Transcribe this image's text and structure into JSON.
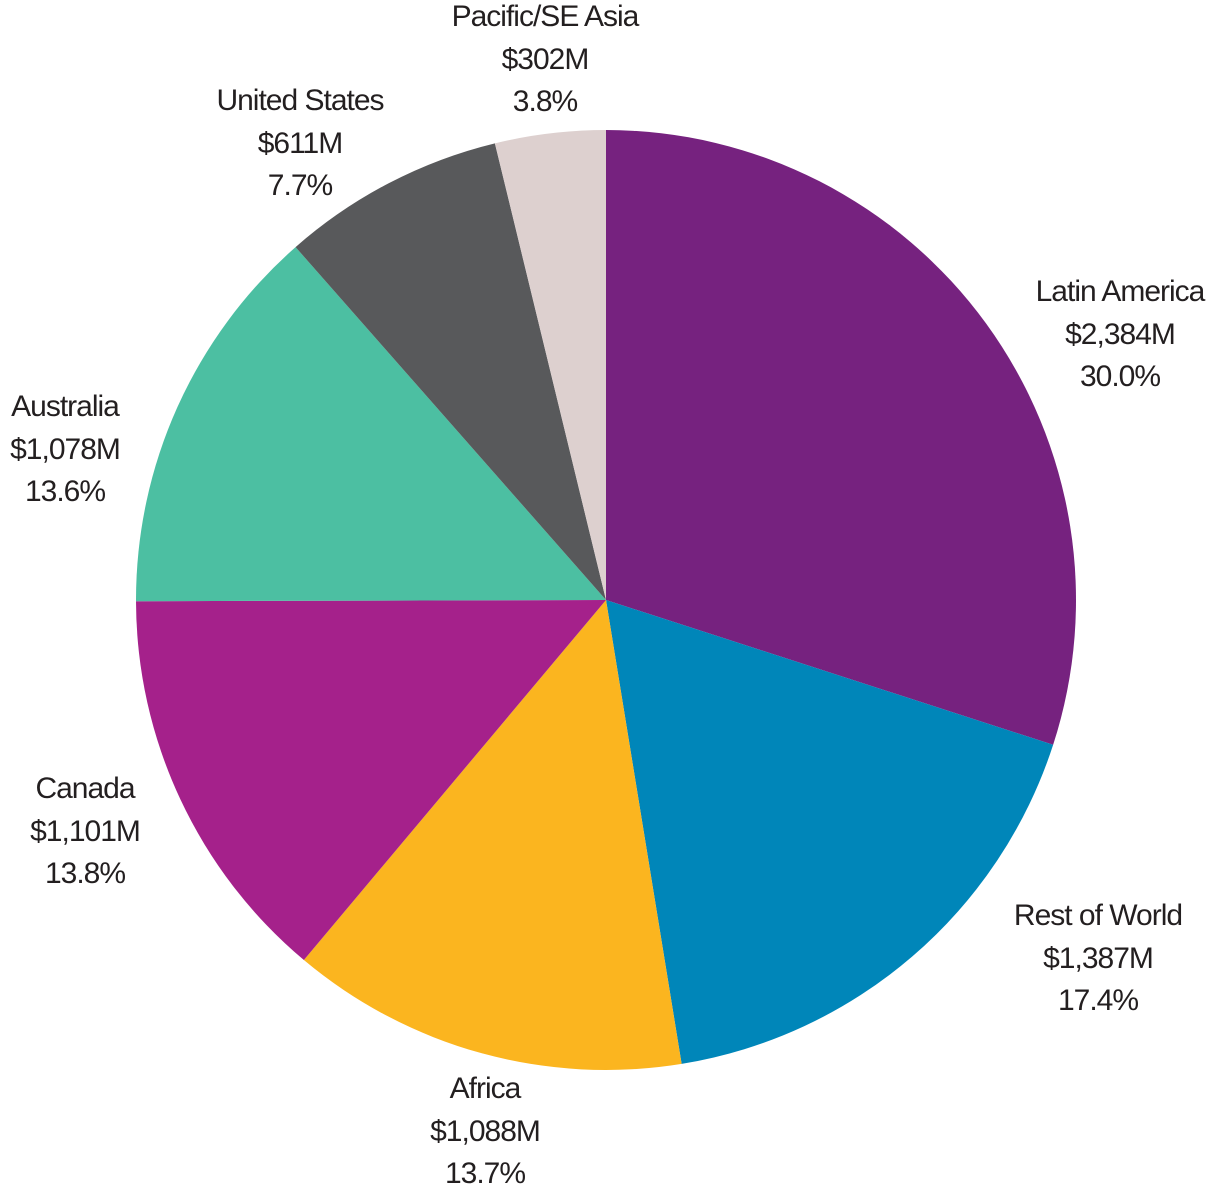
{
  "chart_data": {
    "type": "pie",
    "categories": [
      "Latin America",
      "Rest of World",
      "Africa",
      "Canada",
      "Australia",
      "United States",
      "Pacific/SE Asia"
    ],
    "values": [
      2384,
      1387,
      1088,
      1101,
      1078,
      611,
      302
    ],
    "value_labels": [
      "$2,384M",
      "$1,387M",
      "$1,088M",
      "$1,101M",
      "$1,078M",
      "$611M",
      "$302M"
    ],
    "percentages": [
      30.0,
      17.4,
      13.7,
      13.8,
      13.6,
      7.7,
      3.8
    ],
    "percentage_labels": [
      "30.0%",
      "17.4%",
      "13.7%",
      "13.8%",
      "13.6%",
      "7.7%",
      "3.8%"
    ],
    "colors": [
      "#76227f",
      "#0086b9",
      "#fbb51f",
      "#a5218b",
      "#4cbfa2",
      "#58595b",
      "#ddd0cf"
    ]
  }
}
